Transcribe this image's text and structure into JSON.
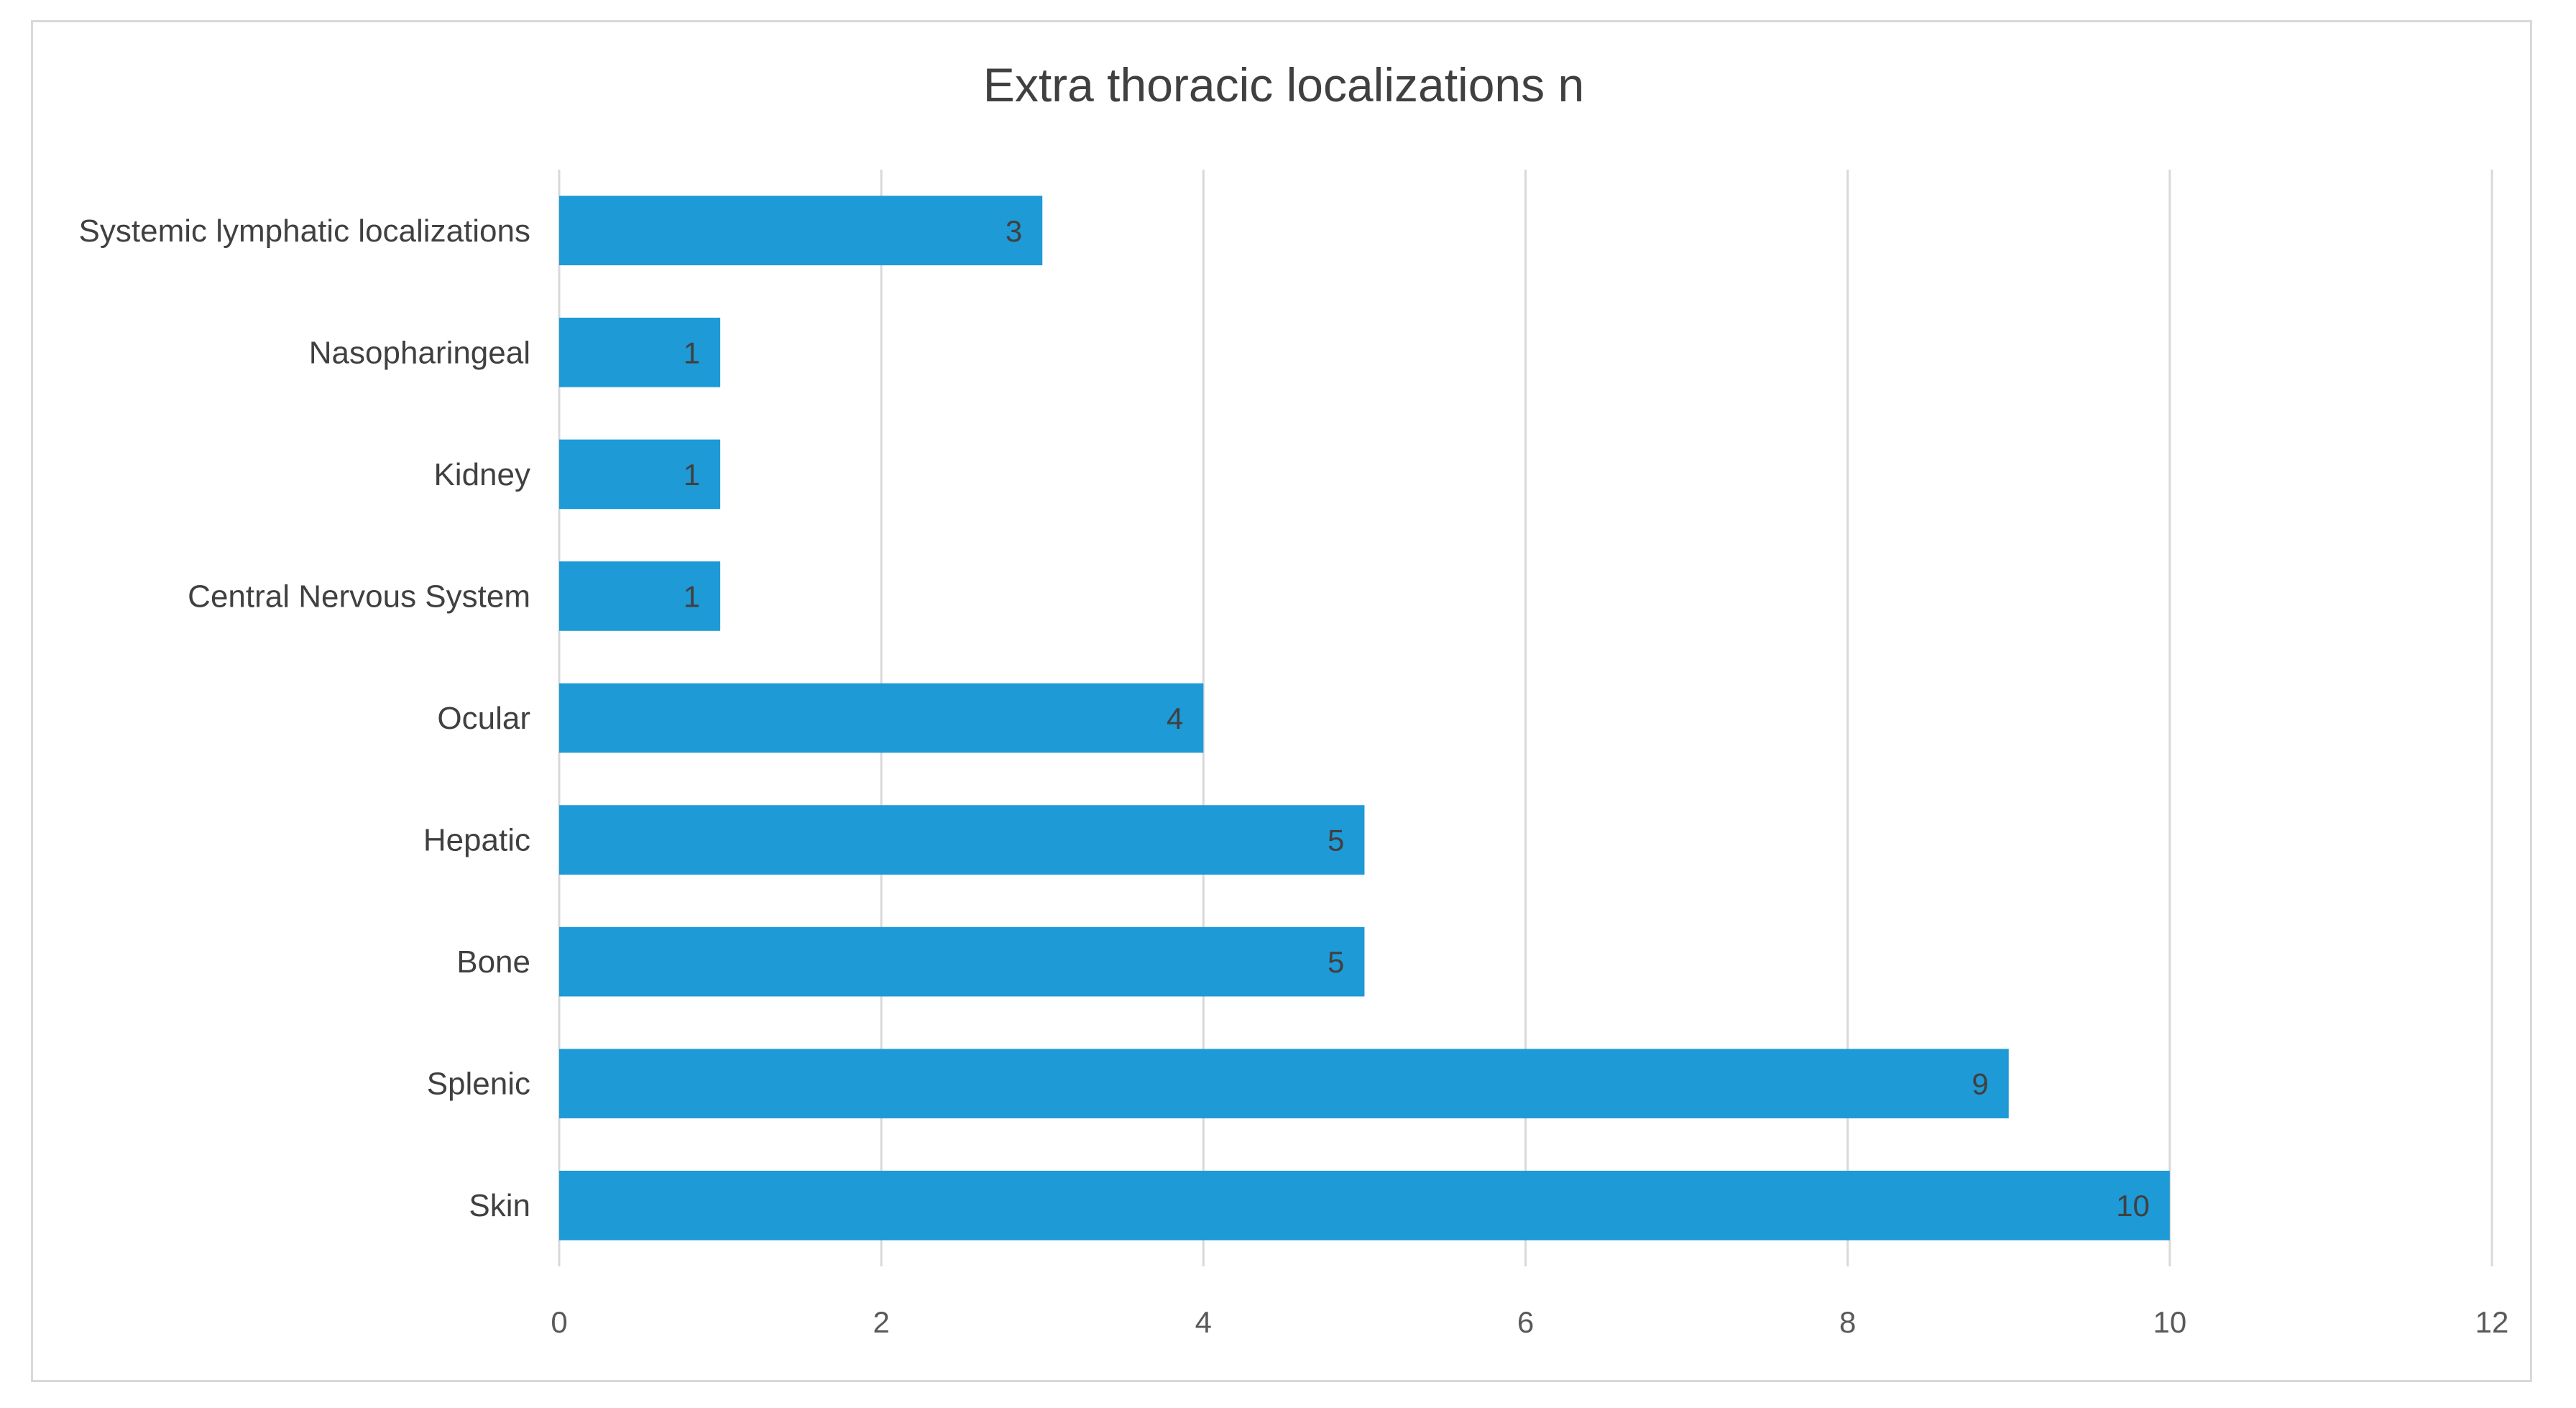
{
  "chart_data": {
    "type": "bar",
    "orientation": "horizontal",
    "title": "Extra thoracic localizations n",
    "xlabel": "",
    "ylabel": "",
    "categories": [
      "Systemic lymphatic localizations",
      "Nasopharingeal",
      "Kidney",
      "Central Nervous System",
      "Ocular",
      "Hepatic",
      "Bone",
      "Splenic",
      "Skin"
    ],
    "values": [
      3,
      1,
      1,
      1,
      4,
      5,
      5,
      9,
      10
    ],
    "xlim": [
      0,
      12
    ],
    "xticks": [
      "0",
      "2",
      "4",
      "6",
      "8",
      "10",
      "12"
    ],
    "grid": "vertical",
    "legend": "none",
    "data_labels": true,
    "bar_color": "#1e9ad6"
  }
}
